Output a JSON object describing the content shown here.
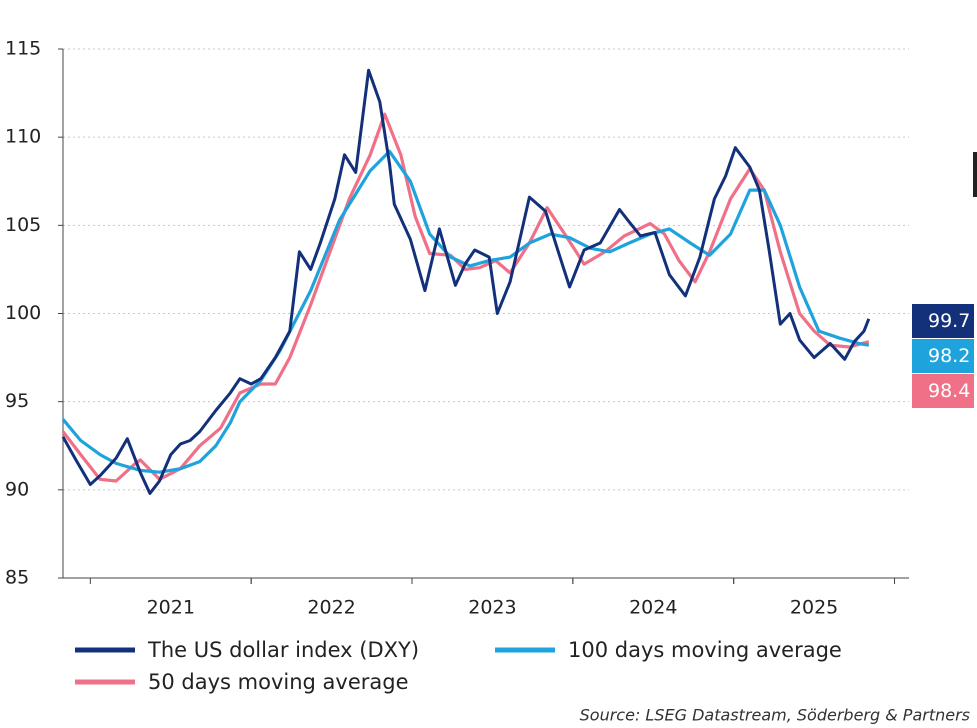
{
  "chart_data": {
    "type": "line",
    "source": "Source: LSEG Datastream, Söderberg & Partners",
    "xlim": [
      2020.83,
      2026.09
    ],
    "xticks": [
      {
        "value": 2021.5,
        "label": "2021"
      },
      {
        "value": 2022.5,
        "label": "2022"
      },
      {
        "value": 2023.5,
        "label": "2023"
      },
      {
        "value": 2024.5,
        "label": "2024"
      },
      {
        "value": 2025.5,
        "label": "2025"
      }
    ],
    "ylim": [
      85,
      115
    ],
    "yticks": [
      85,
      90,
      95,
      100,
      105,
      110,
      115
    ],
    "grid": true,
    "series": [
      {
        "name": "The US dollar index (DXY)",
        "color": "#13307a",
        "x": [
          2020.83,
          2020.91,
          2021.0,
          2021.06,
          2021.16,
          2021.23,
          2021.31,
          2021.37,
          2021.43,
          2021.5,
          2021.56,
          2021.62,
          2021.68,
          2021.78,
          2021.87,
          2021.93,
          2022.0,
          2022.06,
          2022.15,
          2022.24,
          2022.3,
          2022.37,
          2022.43,
          2022.52,
          2022.58,
          2022.65,
          2022.73,
          2022.8,
          2022.86,
          2022.89,
          2022.99,
          2023.08,
          2023.17,
          2023.27,
          2023.33,
          2023.39,
          2023.48,
          2023.53,
          2023.61,
          2023.67,
          2023.73,
          2023.83,
          2023.92,
          2023.98,
          2024.07,
          2024.17,
          2024.29,
          2024.35,
          2024.42,
          2024.51,
          2024.6,
          2024.7,
          2024.79,
          2024.88,
          2024.95,
          2025.01,
          2025.1,
          2025.16,
          2025.22,
          2025.29,
          2025.35,
          2025.41,
          2025.5,
          2025.6,
          2025.69,
          2025.75,
          2025.81,
          2025.84
        ],
        "values": [
          93.0,
          91.7,
          90.3,
          90.8,
          91.8,
          92.9,
          91.0,
          89.8,
          90.5,
          92.0,
          92.6,
          92.8,
          93.3,
          94.5,
          95.5,
          96.3,
          96.0,
          96.3,
          97.5,
          99.0,
          103.5,
          102.5,
          104.0,
          106.5,
          109.0,
          108.0,
          113.8,
          112.0,
          108.5,
          106.2,
          104.2,
          101.3,
          104.8,
          101.6,
          102.8,
          103.6,
          103.2,
          100.0,
          101.8,
          104.2,
          106.6,
          105.8,
          103.2,
          101.5,
          103.6,
          104.0,
          105.9,
          105.2,
          104.4,
          104.6,
          102.2,
          101.0,
          103.2,
          106.5,
          107.8,
          109.4,
          108.3,
          107.0,
          103.6,
          99.4,
          100.0,
          98.5,
          97.5,
          98.3,
          97.4,
          98.4,
          99.0,
          99.7
        ]
      },
      {
        "name": "100 days moving average",
        "color": "#1fa3dc",
        "x": [
          2020.83,
          2020.94,
          2021.06,
          2021.16,
          2021.31,
          2021.43,
          2021.56,
          2021.68,
          2021.78,
          2021.87,
          2021.93,
          2022.06,
          2022.18,
          2022.37,
          2022.55,
          2022.74,
          2022.86,
          2022.99,
          2023.11,
          2023.24,
          2023.36,
          2023.48,
          2023.61,
          2023.73,
          2023.86,
          2023.98,
          2024.11,
          2024.23,
          2024.35,
          2024.48,
          2024.6,
          2024.73,
          2024.85,
          2024.98,
          2025.1,
          2025.19,
          2025.29,
          2025.41,
          2025.53,
          2025.66,
          2025.78,
          2025.84
        ],
        "values": [
          94.0,
          92.8,
          92.0,
          91.5,
          91.1,
          91.0,
          91.2,
          91.6,
          92.5,
          93.8,
          95.0,
          96.2,
          97.9,
          101.3,
          105.3,
          108.1,
          109.2,
          107.5,
          104.5,
          103.2,
          102.7,
          103.0,
          103.2,
          104.0,
          104.5,
          104.3,
          103.7,
          103.5,
          104.0,
          104.5,
          104.8,
          104.0,
          103.3,
          104.5,
          107.0,
          107.0,
          105.0,
          101.5,
          99.0,
          98.6,
          98.3,
          98.2
        ]
      },
      {
        "name": "50 days moving average",
        "color": "#f07088",
        "x": [
          2020.83,
          2020.94,
          2021.06,
          2021.16,
          2021.28,
          2021.31,
          2021.43,
          2021.56,
          2021.68,
          2021.81,
          2021.93,
          2022.06,
          2022.15,
          2022.24,
          2022.37,
          2022.49,
          2022.61,
          2022.74,
          2022.83,
          2022.93,
          2023.02,
          2023.11,
          2023.24,
          2023.33,
          2023.42,
          2023.52,
          2023.61,
          2023.73,
          2023.84,
          2023.95,
          2024.07,
          2024.2,
          2024.32,
          2024.48,
          2024.57,
          2024.66,
          2024.76,
          2024.85,
          2024.98,
          2025.1,
          2025.19,
          2025.29,
          2025.41,
          2025.5,
          2025.6,
          2025.72,
          2025.84
        ],
        "values": [
          93.3,
          92.0,
          90.6,
          90.5,
          91.5,
          91.7,
          90.6,
          91.2,
          92.5,
          93.5,
          95.5,
          96.0,
          96.0,
          97.5,
          100.5,
          103.5,
          106.5,
          109.0,
          111.3,
          109.0,
          105.5,
          103.4,
          103.3,
          102.5,
          102.6,
          103.0,
          102.3,
          104.0,
          106.0,
          104.5,
          102.8,
          103.5,
          104.4,
          105.1,
          104.5,
          103.0,
          101.8,
          103.5,
          106.5,
          108.2,
          107.0,
          103.5,
          100.0,
          99.0,
          98.2,
          98.1,
          98.4
        ]
      }
    ]
  }
}
